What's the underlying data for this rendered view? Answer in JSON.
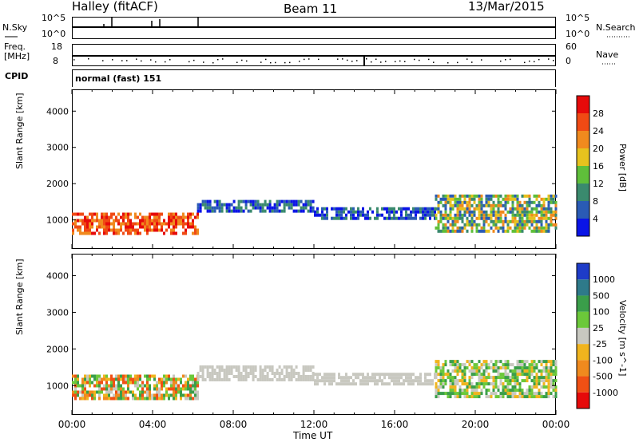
{
  "header": {
    "station": "Halley (fitACF)",
    "beam": "Beam 11",
    "date": "13/Mar/2015"
  },
  "top_panels": {
    "nsky_label": "N.Sky",
    "nsky_ticks": [
      "10^5",
      "10^0"
    ],
    "nsearch_label": "N.Search",
    "nsearch_ticks": [
      "10^5",
      "10^0"
    ],
    "freq_label": "Freq.",
    "freq_unit": "[MHz]",
    "freq_ticks": [
      "18",
      "8"
    ],
    "nave_label": "Nave",
    "nave_ticks": [
      "60",
      "0"
    ],
    "cpid_label": "CPID",
    "cpid_text": "normal (fast) 151"
  },
  "chart_data": [
    {
      "type": "heatmap",
      "name": "power",
      "ylabel": "Slant Range [km]",
      "y_ticks": [
        "1000",
        "2000",
        "3000",
        "4000"
      ],
      "ylim": [
        200,
        4600
      ],
      "xlim": [
        0,
        24
      ],
      "colorbar": {
        "label": "Power [dB]",
        "ticks": [
          "4",
          "8",
          "12",
          "16",
          "20",
          "24",
          "28"
        ],
        "colors": [
          "#0a14e6",
          "#2a5bb5",
          "#3a8a6e",
          "#5fbf3a",
          "#e6c21e",
          "#f08a1e",
          "#f04a14",
          "#e60a0a"
        ]
      },
      "echo_bands": [
        {
          "t0": 0.0,
          "t1": 6.2,
          "r0": 650,
          "r1": 1200,
          "level": 28
        },
        {
          "t0": 6.2,
          "t1": 12.0,
          "r0": 1200,
          "r1": 1550,
          "level": 6
        },
        {
          "t0": 12.0,
          "t1": 18.0,
          "r0": 1050,
          "r1": 1350,
          "level": 6
        },
        {
          "t0": 18.0,
          "t1": 24.0,
          "r0": 700,
          "r1": 1700,
          "level": 14
        }
      ]
    },
    {
      "type": "heatmap",
      "name": "velocity",
      "ylabel": "Slant Range [km]",
      "y_ticks": [
        "1000",
        "2000",
        "3000",
        "4000"
      ],
      "ylim": [
        200,
        4600
      ],
      "xlim": [
        0,
        24
      ],
      "xlabel": "Time UT",
      "x_ticks": [
        "00:00",
        "04:00",
        "08:00",
        "12:00",
        "16:00",
        "20:00",
        "00:00"
      ],
      "colorbar": {
        "label": "Velocity [m s^-1]",
        "ticks": [
          "1000",
          "500",
          "100",
          "25",
          "-25",
          "-100",
          "-500",
          "-1000"
        ],
        "colors": [
          "#1e3cc8",
          "#2e7a8a",
          "#3a9e4a",
          "#6cc83a",
          "#c8c8c0",
          "#f0b41e",
          "#f08a1e",
          "#f05014",
          "#e60a0a"
        ]
      },
      "echo_bands": [
        {
          "t0": 0.0,
          "t1": 6.2,
          "r0": 650,
          "r1": 1300,
          "level": 100
        },
        {
          "t0": 6.2,
          "t1": 12.0,
          "r0": 1200,
          "r1": 1550,
          "level": 0
        },
        {
          "t0": 12.0,
          "t1": 18.0,
          "r0": 1050,
          "r1": 1350,
          "level": 0
        },
        {
          "t0": 18.0,
          "t1": 24.0,
          "r0": 700,
          "r1": 1700,
          "level": 100
        }
      ]
    }
  ]
}
